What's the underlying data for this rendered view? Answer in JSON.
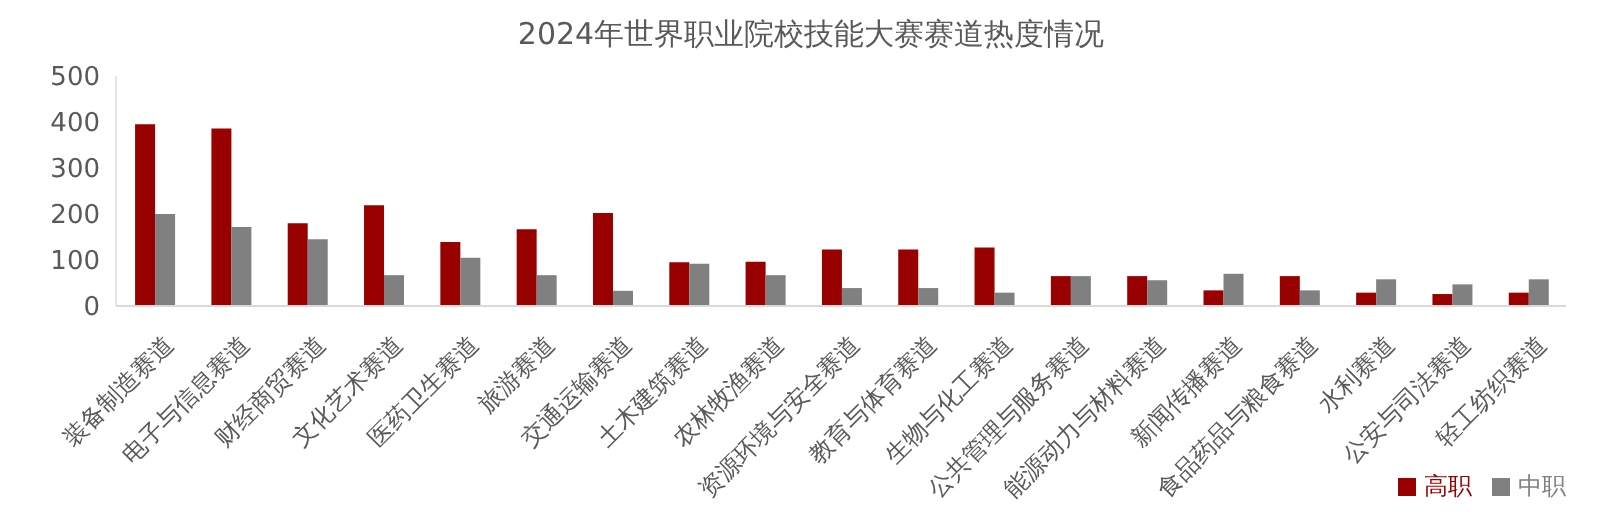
{
  "chart_data": {
    "type": "bar",
    "title": "2024年世界职业院校技能大赛赛道热度情况",
    "categories": [
      "装备制造赛道",
      "电子与信息赛道",
      "财经商贸赛道",
      "文化艺术赛道",
      "医药卫生赛道",
      "旅游赛道",
      "交通运输赛道",
      "土木建筑赛道",
      "农林牧渔赛道",
      "资源环境与安全赛道",
      "教育与体育赛道",
      "生物与化工赛道",
      "公共管理与服务赛道",
      "能源动力与材料赛道",
      "新闻传播赛道",
      "食品药品与粮食赛道",
      "水利赛道",
      "公安与司法赛道",
      "轻工纺织赛道"
    ],
    "series": [
      {
        "name": "高职",
        "color": "#990000",
        "values": [
          395,
          386,
          180,
          219,
          139,
          167,
          202,
          95,
          96,
          123,
          123,
          127,
          65,
          65,
          34,
          65,
          29,
          26,
          29
        ]
      },
      {
        "name": "中职",
        "color": "#808080",
        "values": [
          200,
          172,
          145,
          67,
          105,
          67,
          33,
          92,
          67,
          39,
          39,
          29,
          65,
          56,
          70,
          34,
          58,
          47,
          58
        ]
      }
    ],
    "ylim": [
      0,
      500
    ],
    "yticks": [
      0,
      100,
      200,
      300,
      400,
      500
    ],
    "grid": false,
    "legend": "bottom right"
  }
}
